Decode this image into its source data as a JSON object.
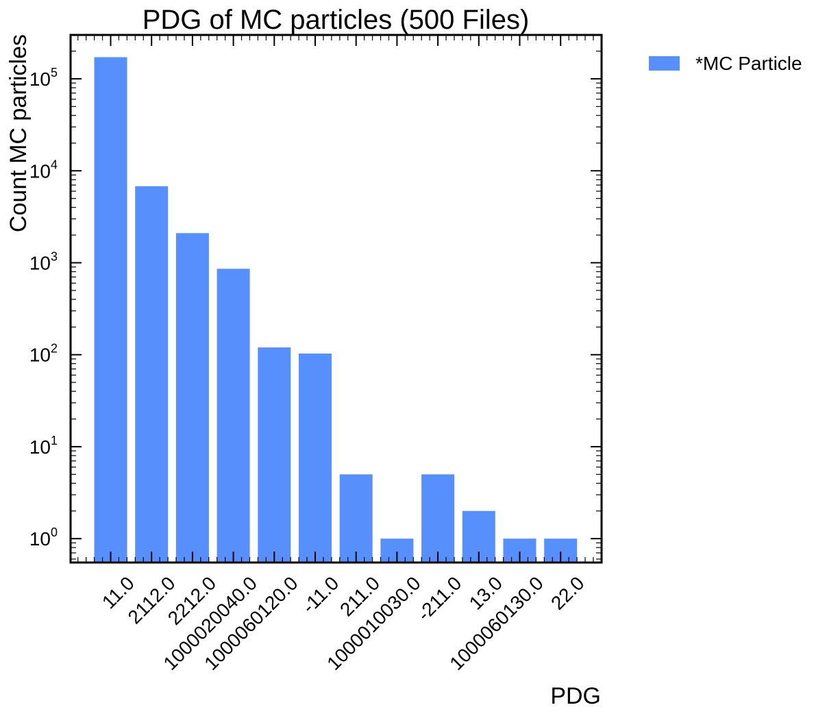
{
  "chart_data": {
    "type": "bar",
    "title": "PDG of MC particles (500 Files)",
    "xlabel": "PDG",
    "ylabel": "Count MC particles",
    "yscale": "log",
    "ylim": [
      0.55,
      300000
    ],
    "y_tick_labels": [
      {
        "value": 1,
        "base": "10",
        "exp": "0"
      },
      {
        "value": 10,
        "base": "10",
        "exp": "1"
      },
      {
        "value": 100,
        "base": "10",
        "exp": "2"
      },
      {
        "value": 1000,
        "base": "10",
        "exp": "3"
      },
      {
        "value": 10000,
        "base": "10",
        "exp": "4"
      },
      {
        "value": 100000,
        "base": "10",
        "exp": "5"
      }
    ],
    "categories": [
      "11.0",
      "2112.0",
      "2212.0",
      "1000020040.0",
      "1000060120.0",
      "-11.0",
      "211.0",
      "1000010030.0",
      "-211.0",
      "13.0",
      "1000060130.0",
      "22.0"
    ],
    "series": [
      {
        "name": "*MC Particle",
        "color": "#5790fc",
        "values": [
          172000,
          6800,
          2100,
          860,
          120,
          103,
          5,
          1,
          5,
          2,
          1,
          1
        ]
      }
    ],
    "legend": {
      "position": "outside-right-top"
    },
    "grid": false
  }
}
